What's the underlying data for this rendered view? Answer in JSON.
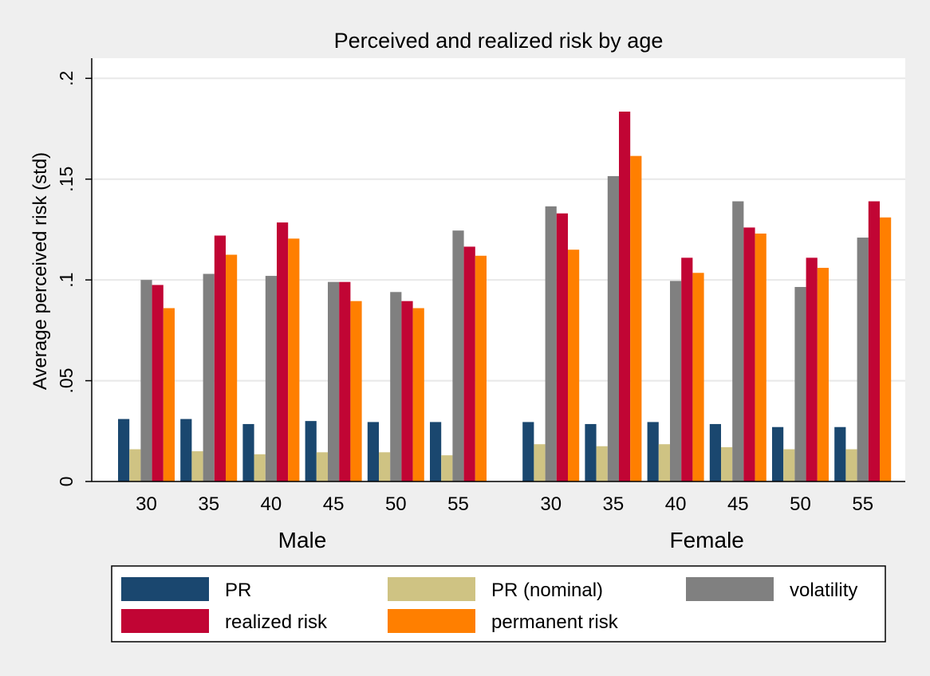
{
  "chart_data": {
    "type": "bar",
    "title": "Perceived and realized risk by age",
    "ylabel": "Average perceived risk (std)",
    "xlabel": "",
    "ylim": [
      0,
      0.21
    ],
    "yticks": [
      0,
      0.05,
      0.1,
      0.15,
      0.2
    ],
    "ytick_labels": [
      "0",
      ".05",
      ".1",
      ".15",
      ".2"
    ],
    "grid": true,
    "legend_position": "bottom",
    "groups": [
      {
        "name": "Male",
        "categories": [
          "30",
          "35",
          "40",
          "45",
          "50",
          "55"
        ]
      },
      {
        "name": "Female",
        "categories": [
          "30",
          "35",
          "40",
          "45",
          "50",
          "55"
        ]
      }
    ],
    "series": [
      {
        "name": "PR",
        "color": "#1a476f",
        "values": [
          0.031,
          0.031,
          0.0285,
          0.03,
          0.0295,
          0.0295,
          0.0295,
          0.0285,
          0.0295,
          0.0285,
          0.027,
          0.027
        ]
      },
      {
        "name": "PR (nominal)",
        "color": "#cfc383",
        "values": [
          0.016,
          0.015,
          0.0135,
          0.0145,
          0.0145,
          0.013,
          0.0185,
          0.0175,
          0.0185,
          0.017,
          0.016,
          0.016
        ]
      },
      {
        "name": "volatility",
        "color": "#808080",
        "values": [
          0.1,
          0.103,
          0.102,
          0.099,
          0.094,
          0.1245,
          0.1365,
          0.1515,
          0.0995,
          0.139,
          0.0965,
          0.121
        ]
      },
      {
        "name": "realized risk",
        "color": "#c10534",
        "values": [
          0.0975,
          0.122,
          0.1285,
          0.099,
          0.0895,
          0.1165,
          0.133,
          0.1835,
          0.111,
          0.126,
          0.111,
          0.139
        ]
      },
      {
        "name": "permanent risk",
        "color": "#ff7f00",
        "values": [
          0.086,
          0.1125,
          0.1205,
          0.0895,
          0.086,
          0.112,
          0.115,
          0.1615,
          0.1035,
          0.123,
          0.106,
          0.131
        ]
      }
    ]
  }
}
